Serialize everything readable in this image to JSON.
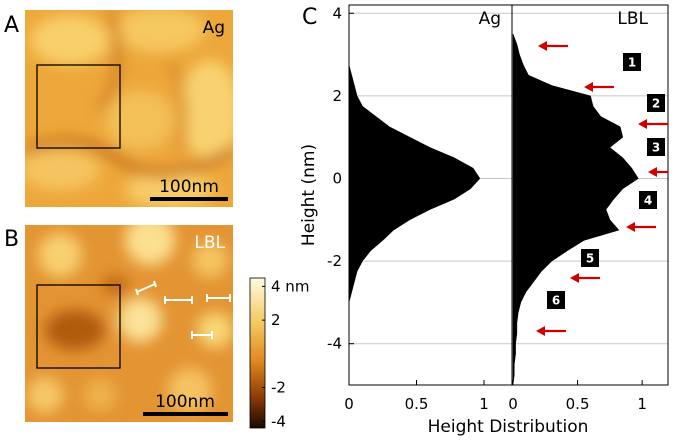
{
  "panel_a": {
    "label": "A",
    "sample": "Ag",
    "scale_bar": "100nm"
  },
  "panel_b": {
    "label": "B",
    "sample": "LBL",
    "scale_bar": "100nm"
  },
  "colorbar": {
    "lim": [
      -4.4,
      4.5
    ],
    "ticks": [
      {
        "value": 4,
        "label": "4 nm"
      },
      2,
      {
        "value": -2,
        "label": "-2"
      },
      {
        "value": -4,
        "label": "-4"
      }
    ]
  },
  "chart_data": {
    "type": "area",
    "panel_label": "C",
    "ylabel": "Height (nm)",
    "xlabel": "Height Distribution",
    "y": [
      -5,
      -4.75,
      -4.5,
      -4.25,
      -4,
      -3.75,
      -3.5,
      -3.25,
      -3,
      -2.75,
      -2.5,
      -2.25,
      -2,
      -1.75,
      -1.5,
      -1.25,
      -1,
      -0.75,
      -0.5,
      -0.25,
      0,
      0.25,
      0.5,
      0.75,
      1,
      1.25,
      1.5,
      1.75,
      2,
      2.25,
      2.5,
      2.75,
      3,
      3.25,
      3.5
    ],
    "series": [
      {
        "name": "Ag",
        "color": "#000000",
        "values": [
          0,
          0,
          0,
          0,
          0,
          0,
          0,
          0,
          0,
          0.02,
          0.04,
          0.06,
          0.1,
          0.16,
          0.25,
          0.33,
          0.45,
          0.6,
          0.78,
          0.9,
          0.97,
          0.92,
          0.78,
          0.6,
          0.45,
          0.3,
          0.2,
          0.1,
          0.06,
          0.04,
          0.02,
          0,
          0,
          0,
          0
        ]
      },
      {
        "name": "LBL",
        "color": "#000000",
        "values": [
          0,
          0.01,
          0.01,
          0.02,
          0.02,
          0.03,
          0.03,
          0.04,
          0.06,
          0.1,
          0.16,
          0.22,
          0.3,
          0.42,
          0.55,
          0.82,
          0.75,
          0.72,
          0.78,
          0.85,
          0.97,
          0.92,
          0.85,
          0.75,
          0.85,
          0.83,
          0.68,
          0.62,
          0.6,
          0.3,
          0.12,
          0.08,
          0.05,
          0.03,
          0
        ]
      }
    ],
    "xlim": [
      0,
      1.2
    ],
    "xticks": [
      0,
      0.5,
      1
    ],
    "ylim": [
      -5,
      4.2
    ],
    "yticks": [
      {
        "value": -4,
        "label": "-4"
      },
      {
        "value": -2,
        "label": "-2"
      },
      0,
      2,
      4
    ],
    "grid": true,
    "annotations": [
      "1",
      "2",
      "3",
      "4",
      "5",
      "6"
    ]
  }
}
